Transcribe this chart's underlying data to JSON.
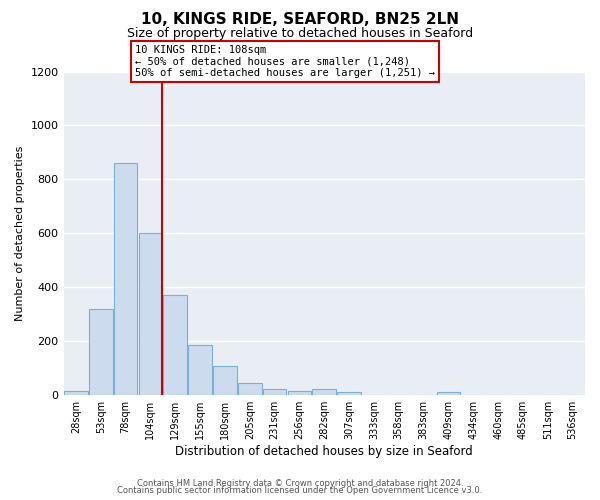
{
  "title": "10, KINGS RIDE, SEAFORD, BN25 2LN",
  "subtitle": "Size of property relative to detached houses in Seaford",
  "xlabel": "Distribution of detached houses by size in Seaford",
  "ylabel": "Number of detached properties",
  "bin_labels": [
    "28sqm",
    "53sqm",
    "78sqm",
    "104sqm",
    "129sqm",
    "155sqm",
    "180sqm",
    "205sqm",
    "231sqm",
    "256sqm",
    "282sqm",
    "307sqm",
    "333sqm",
    "358sqm",
    "383sqm",
    "409sqm",
    "434sqm",
    "460sqm",
    "485sqm",
    "511sqm",
    "536sqm"
  ],
  "bin_values": [
    15,
    320,
    860,
    600,
    370,
    185,
    105,
    45,
    20,
    15,
    20,
    10,
    0,
    0,
    0,
    10,
    0,
    0,
    0,
    0,
    0
  ],
  "bar_color": "#ccdcee",
  "bar_edgecolor": "#7ab0d4",
  "vline_color": "#cc0000",
  "annotation_title": "10 KINGS RIDE: 108sqm",
  "annotation_line1": "← 50% of detached houses are smaller (1,248)",
  "annotation_line2": "50% of semi-detached houses are larger (1,251) →",
  "annotation_box_color": "white",
  "annotation_box_edgecolor": "#cc0000",
  "ylim": [
    0,
    1200
  ],
  "yticks": [
    0,
    200,
    400,
    600,
    800,
    1000,
    1200
  ],
  "footer_line1": "Contains HM Land Registry data © Crown copyright and database right 2024.",
  "footer_line2": "Contains public sector information licensed under the Open Government Licence v3.0.",
  "plot_bg_color": "#e8eef4",
  "figure_bg_color": "#ffffff",
  "grid_color": "#ffffff",
  "title_fontsize": 11,
  "subtitle_fontsize": 9
}
